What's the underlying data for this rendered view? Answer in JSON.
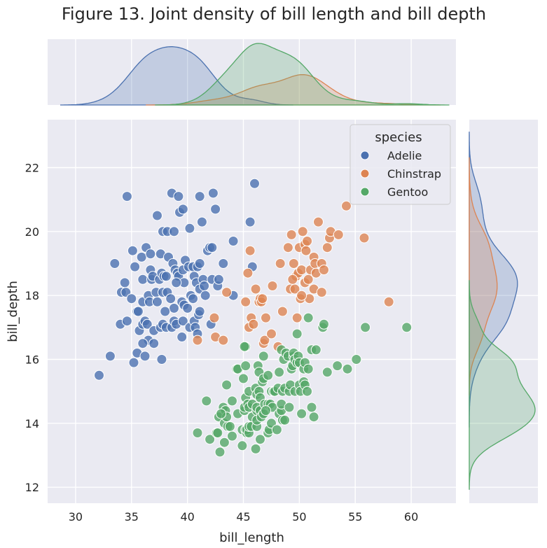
{
  "chart_data": {
    "type": "scatter",
    "title": "Figure 13. Joint density of bill length and bill depth",
    "xlabel": "bill_length",
    "ylabel": "bill_depth",
    "xlim": [
      27.5,
      64
    ],
    "ylim": [
      11.5,
      23.5
    ],
    "xticks": [
      30,
      35,
      40,
      45,
      50,
      55,
      60
    ],
    "yticks": [
      12,
      14,
      16,
      18,
      20,
      22
    ],
    "grid": true,
    "legend": {
      "title": "species",
      "placement": "top-right"
    },
    "marginals": "kde",
    "series": [
      {
        "name": "Adelie",
        "color": "#4c72b0",
        "points": [
          [
            32.1,
            15.5
          ],
          [
            33.1,
            16.1
          ],
          [
            33.5,
            19.0
          ],
          [
            34.4,
            18.4
          ],
          [
            34.6,
            21.1
          ],
          [
            34.1,
            18.1
          ],
          [
            34.5,
            18.1
          ],
          [
            34.0,
            17.1
          ],
          [
            34.6,
            17.2
          ],
          [
            35.0,
            17.9
          ],
          [
            35.1,
            19.4
          ],
          [
            35.2,
            15.9
          ],
          [
            35.3,
            18.9
          ],
          [
            35.5,
            16.2
          ],
          [
            35.5,
            17.5
          ],
          [
            35.6,
            17.5
          ],
          [
            35.7,
            16.9
          ],
          [
            35.9,
            19.2
          ],
          [
            36.0,
            17.1
          ],
          [
            36.0,
            17.8
          ],
          [
            36.0,
            18.5
          ],
          [
            36.2,
            16.1
          ],
          [
            36.2,
            17.2
          ],
          [
            36.3,
            19.5
          ],
          [
            36.4,
            17.1
          ],
          [
            36.5,
            16.6
          ],
          [
            36.5,
            18.0
          ],
          [
            36.6,
            17.8
          ],
          [
            36.7,
            18.8
          ],
          [
            36.7,
            19.3
          ],
          [
            36.8,
            18.5
          ],
          [
            36.9,
            18.6
          ],
          [
            37.0,
            16.5
          ],
          [
            37.0,
            16.9
          ],
          [
            37.2,
            18.1
          ],
          [
            37.3,
            17.8
          ],
          [
            37.3,
            20.5
          ],
          [
            37.5,
            18.5
          ],
          [
            37.6,
            17.0
          ],
          [
            37.6,
            19.3
          ],
          [
            37.7,
            18.7
          ],
          [
            37.7,
            16.0
          ],
          [
            37.8,
            17.1
          ],
          [
            37.8,
            18.1
          ],
          [
            37.8,
            20.0
          ],
          [
            37.9,
            18.6
          ],
          [
            38.1,
            17.0
          ],
          [
            38.1,
            18.6
          ],
          [
            38.2,
            18.1
          ],
          [
            38.2,
            20.0
          ],
          [
            38.3,
            19.2
          ],
          [
            38.5,
            17.9
          ],
          [
            38.6,
            17.0
          ],
          [
            38.6,
            21.2
          ],
          [
            38.7,
            19.0
          ],
          [
            38.8,
            17.2
          ],
          [
            38.8,
            17.6
          ],
          [
            38.8,
            20.0
          ],
          [
            38.9,
            18.8
          ],
          [
            39.0,
            17.1
          ],
          [
            39.1,
            18.7
          ],
          [
            39.2,
            18.6
          ],
          [
            39.2,
            21.1
          ],
          [
            39.3,
            20.6
          ],
          [
            39.5,
            16.7
          ],
          [
            39.5,
            17.8
          ],
          [
            39.6,
            17.2
          ],
          [
            39.6,
            18.8
          ],
          [
            39.6,
            20.7
          ],
          [
            39.7,
            17.7
          ],
          [
            39.7,
            18.4
          ],
          [
            39.8,
            19.1
          ],
          [
            40.1,
            18.9
          ],
          [
            40.2,
            17.0
          ],
          [
            40.2,
            20.1
          ],
          [
            40.3,
            18.0
          ],
          [
            40.5,
            17.9
          ],
          [
            40.5,
            18.9
          ],
          [
            40.6,
            17.2
          ],
          [
            40.6,
            18.6
          ],
          [
            40.7,
            17.0
          ],
          [
            40.8,
            18.4
          ],
          [
            40.9,
            16.8
          ],
          [
            40.9,
            18.9
          ],
          [
            41.0,
            17.4
          ],
          [
            41.1,
            17.5
          ],
          [
            41.1,
            18.2
          ],
          [
            41.1,
            19.0
          ],
          [
            41.3,
            20.3
          ],
          [
            41.4,
            18.5
          ],
          [
            41.5,
            18.3
          ],
          [
            41.6,
            18.0
          ],
          [
            41.8,
            19.4
          ],
          [
            42.0,
            19.5
          ],
          [
            42.1,
            17.1
          ],
          [
            42.2,
            18.5
          ],
          [
            42.2,
            19.5
          ],
          [
            42.3,
            21.2
          ],
          [
            42.5,
            20.7
          ],
          [
            42.7,
            18.3
          ],
          [
            42.8,
            18.5
          ],
          [
            43.2,
            19.0
          ],
          [
            41.1,
            21.1
          ],
          [
            44.1,
            19.7
          ],
          [
            44.1,
            18.0
          ],
          [
            45.6,
            20.3
          ],
          [
            45.8,
            18.9
          ],
          [
            46.0,
            21.5
          ],
          [
            40.0,
            17.6
          ],
          [
            39.0,
            18.4
          ],
          [
            38.0,
            17.5
          ],
          [
            36.0,
            16.5
          ]
        ]
      },
      {
        "name": "Chinstrap",
        "color": "#dd8452",
        "points": [
          [
            40.9,
            16.6
          ],
          [
            42.4,
            17.3
          ],
          [
            42.5,
            16.7
          ],
          [
            43.2,
            16.6
          ],
          [
            43.5,
            18.1
          ],
          [
            45.2,
            17.8
          ],
          [
            45.4,
            18.7
          ],
          [
            45.5,
            17.0
          ],
          [
            45.6,
            19.4
          ],
          [
            45.7,
            17.3
          ],
          [
            45.9,
            17.1
          ],
          [
            46.1,
            18.2
          ],
          [
            46.4,
            17.8
          ],
          [
            46.5,
            17.9
          ],
          [
            46.6,
            17.8
          ],
          [
            46.7,
            17.9
          ],
          [
            46.8,
            16.5
          ],
          [
            46.9,
            16.6
          ],
          [
            47.0,
            17.3
          ],
          [
            47.5,
            16.8
          ],
          [
            47.6,
            18.3
          ],
          [
            48.1,
            16.4
          ],
          [
            48.5,
            17.5
          ],
          [
            49.0,
            19.5
          ],
          [
            49.2,
            18.2
          ],
          [
            49.3,
            19.9
          ],
          [
            49.5,
            19.0
          ],
          [
            49.6,
            18.2
          ],
          [
            49.7,
            18.6
          ],
          [
            49.8,
            17.3
          ],
          [
            49.9,
            18.7
          ],
          [
            50.0,
            19.5
          ],
          [
            50.1,
            17.9
          ],
          [
            50.2,
            18.8
          ],
          [
            50.3,
            20.0
          ],
          [
            50.5,
            18.4
          ],
          [
            50.5,
            19.6
          ],
          [
            50.6,
            19.4
          ],
          [
            50.7,
            19.7
          ],
          [
            50.8,
            18.5
          ],
          [
            50.9,
            17.9
          ],
          [
            51.0,
            18.8
          ],
          [
            51.3,
            18.2
          ],
          [
            51.3,
            19.2
          ],
          [
            51.4,
            19.0
          ],
          [
            51.5,
            18.7
          ],
          [
            51.7,
            20.3
          ],
          [
            52.0,
            18.1
          ],
          [
            52.0,
            19.0
          ],
          [
            52.2,
            18.8
          ],
          [
            52.5,
            19.5
          ],
          [
            52.7,
            19.8
          ],
          [
            52.8,
            20.0
          ],
          [
            53.5,
            19.9
          ],
          [
            54.2,
            20.8
          ],
          [
            55.8,
            19.8
          ],
          [
            58.0,
            17.8
          ],
          [
            48.3,
            19.0
          ],
          [
            49.4,
            18.5
          ],
          [
            50.2,
            18.0
          ]
        ]
      },
      {
        "name": "Gentoo",
        "color": "#55a868",
        "points": [
          [
            40.9,
            13.7
          ],
          [
            41.7,
            14.7
          ],
          [
            42.0,
            13.5
          ],
          [
            42.6,
            13.7
          ],
          [
            42.7,
            13.7
          ],
          [
            42.8,
            14.2
          ],
          [
            42.9,
            13.1
          ],
          [
            43.2,
            14.5
          ],
          [
            43.3,
            13.4
          ],
          [
            43.3,
            14.0
          ],
          [
            43.4,
            14.4
          ],
          [
            43.5,
            14.2
          ],
          [
            43.5,
            15.2
          ],
          [
            43.6,
            13.9
          ],
          [
            43.8,
            13.9
          ],
          [
            44.0,
            13.6
          ],
          [
            44.4,
            15.7
          ],
          [
            44.5,
            14.3
          ],
          [
            44.5,
            15.7
          ],
          [
            44.9,
            13.3
          ],
          [
            44.9,
            13.8
          ],
          [
            45.0,
            15.4
          ],
          [
            45.1,
            14.4
          ],
          [
            45.1,
            14.5
          ],
          [
            45.2,
            13.8
          ],
          [
            45.2,
            14.8
          ],
          [
            45.2,
            15.8
          ],
          [
            45.2,
            16.4
          ],
          [
            45.3,
            13.7
          ],
          [
            45.3,
            13.8
          ],
          [
            45.4,
            14.6
          ],
          [
            45.5,
            13.7
          ],
          [
            45.5,
            13.9
          ],
          [
            45.5,
            14.5
          ],
          [
            45.5,
            15.0
          ],
          [
            45.7,
            13.9
          ],
          [
            45.8,
            14.2
          ],
          [
            45.8,
            14.6
          ],
          [
            46.1,
            13.2
          ],
          [
            46.1,
            15.1
          ],
          [
            46.2,
            13.9
          ],
          [
            46.2,
            14.1
          ],
          [
            46.2,
            14.4
          ],
          [
            46.2,
            14.5
          ],
          [
            46.2,
            14.9
          ],
          [
            46.3,
            15.8
          ],
          [
            46.4,
            15.0
          ],
          [
            46.4,
            15.6
          ],
          [
            46.5,
            13.5
          ],
          [
            46.5,
            14.4
          ],
          [
            46.5,
            14.8
          ],
          [
            46.6,
            14.2
          ],
          [
            46.7,
            15.3
          ],
          [
            46.8,
            14.3
          ],
          [
            46.8,
            15.4
          ],
          [
            46.8,
            16.1
          ],
          [
            46.9,
            14.6
          ],
          [
            47.2,
            13.7
          ],
          [
            47.2,
            14.6
          ],
          [
            47.2,
            15.5
          ],
          [
            47.3,
            13.8
          ],
          [
            47.4,
            14.6
          ],
          [
            47.5,
            14.0
          ],
          [
            47.5,
            15.0
          ],
          [
            47.6,
            14.5
          ],
          [
            47.7,
            15.0
          ],
          [
            47.8,
            15.0
          ],
          [
            48.1,
            15.1
          ],
          [
            48.2,
            14.3
          ],
          [
            48.2,
            15.6
          ],
          [
            48.4,
            14.4
          ],
          [
            48.4,
            14.6
          ],
          [
            48.4,
            16.3
          ],
          [
            48.5,
            14.1
          ],
          [
            48.5,
            15.0
          ],
          [
            48.6,
            16.0
          ],
          [
            48.7,
            14.1
          ],
          [
            48.7,
            15.1
          ],
          [
            48.8,
            16.2
          ],
          [
            49.0,
            16.1
          ],
          [
            49.1,
            14.5
          ],
          [
            49.1,
            15.0
          ],
          [
            49.2,
            15.2
          ],
          [
            49.3,
            15.7
          ],
          [
            49.4,
            15.8
          ],
          [
            49.5,
            16.1
          ],
          [
            49.5,
            16.2
          ],
          [
            49.6,
            15.0
          ],
          [
            49.6,
            16.0
          ],
          [
            49.8,
            15.9
          ],
          [
            49.8,
            16.8
          ],
          [
            49.9,
            16.1
          ],
          [
            50.0,
            15.2
          ],
          [
            50.0,
            15.9
          ],
          [
            50.1,
            15.0
          ],
          [
            50.2,
            14.3
          ],
          [
            50.4,
            15.3
          ],
          [
            50.4,
            15.7
          ],
          [
            50.5,
            15.2
          ],
          [
            50.5,
            15.9
          ],
          [
            50.7,
            15.0
          ],
          [
            50.8,
            15.7
          ],
          [
            50.8,
            17.3
          ],
          [
            51.1,
            14.5
          ],
          [
            51.1,
            16.3
          ],
          [
            51.3,
            14.2
          ],
          [
            51.5,
            16.3
          ],
          [
            52.1,
            17.0
          ],
          [
            52.2,
            17.1
          ],
          [
            52.5,
            15.6
          ],
          [
            53.4,
            15.8
          ],
          [
            54.3,
            15.7
          ],
          [
            55.1,
            16.0
          ],
          [
            55.9,
            17.0
          ],
          [
            59.6,
            17.0
          ],
          [
            45.1,
            16.4
          ],
          [
            47.0,
            14.4
          ],
          [
            48.0,
            13.8
          ],
          [
            44.0,
            14.7
          ],
          [
            43.0,
            14.3
          ]
        ]
      }
    ]
  }
}
